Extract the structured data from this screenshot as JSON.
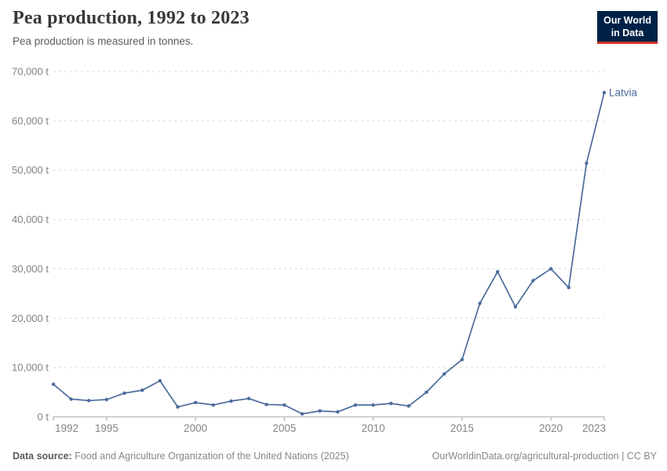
{
  "header": {
    "title": "Pea production, 1992 to 2023",
    "subtitle": "Pea production is measured in tonnes.",
    "logo": {
      "line1": "Our World",
      "line2": "in Data"
    }
  },
  "footer": {
    "source_label": "Data source:",
    "source_text": "Food and Agriculture Organization of the United Nations (2025)",
    "link_text": "OurWorldinData.org/agricultural-production | CC BY"
  },
  "colors": {
    "line": "#4c6a9c",
    "series_label": "#4c6a9c",
    "grid": "#dcdcdc",
    "axis": "#a3a3a3",
    "tick_label": "#828282",
    "title": "#383838",
    "subtitle": "#5b5b5b",
    "logo_bg": "#002147",
    "logo_red": "#d0342c"
  },
  "chart_data": {
    "type": "line",
    "title": "Pea production, 1992 to 2023",
    "subtitle": "Pea production is measured in tonnes.",
    "unit": "tonnes",
    "grid": "horizontal-dashed",
    "legend_position": "end-of-line-label",
    "xlim": [
      1992,
      2023
    ],
    "ylim": [
      0,
      70000
    ],
    "x": [
      1992,
      1993,
      1994,
      1995,
      1996,
      1997,
      1998,
      1999,
      2000,
      2001,
      2002,
      2003,
      2004,
      2005,
      2006,
      2007,
      2008,
      2009,
      2010,
      2011,
      2012,
      2013,
      2014,
      2015,
      2016,
      2017,
      2018,
      2019,
      2020,
      2021,
      2022,
      2023
    ],
    "series": [
      {
        "name": "Latvia",
        "values": [
          6600,
          3600,
          3300,
          3500,
          4800,
          5400,
          7300,
          2000,
          2900,
          2400,
          3200,
          3700,
          2500,
          2400,
          600,
          1200,
          1000,
          2400,
          2400,
          2700,
          2200,
          5000,
          8700,
          11600,
          23000,
          29400,
          22300,
          27600,
          30000,
          26200,
          51400,
          65700
        ]
      }
    ],
    "x_ticks": [
      {
        "value": 1992,
        "label": "1992",
        "align": "start"
      },
      {
        "value": 1995,
        "label": "1995",
        "align": "middle"
      },
      {
        "value": 2000,
        "label": "2000",
        "align": "middle"
      },
      {
        "value": 2005,
        "label": "2005",
        "align": "middle"
      },
      {
        "value": 2010,
        "label": "2010",
        "align": "middle"
      },
      {
        "value": 2015,
        "label": "2015",
        "align": "middle"
      },
      {
        "value": 2020,
        "label": "2020",
        "align": "middle"
      },
      {
        "value": 2023,
        "label": "2023",
        "align": "end"
      }
    ],
    "y_ticks": [
      {
        "value": 0,
        "label": "0 t"
      },
      {
        "value": 10000,
        "label": "10,000 t"
      },
      {
        "value": 20000,
        "label": "20,000 t"
      },
      {
        "value": 30000,
        "label": "30,000 t"
      },
      {
        "value": 40000,
        "label": "40,000 t"
      },
      {
        "value": 50000,
        "label": "50,000 t"
      },
      {
        "value": 60000,
        "label": "60,000 t"
      },
      {
        "value": 70000,
        "label": "70,000 t"
      }
    ]
  }
}
